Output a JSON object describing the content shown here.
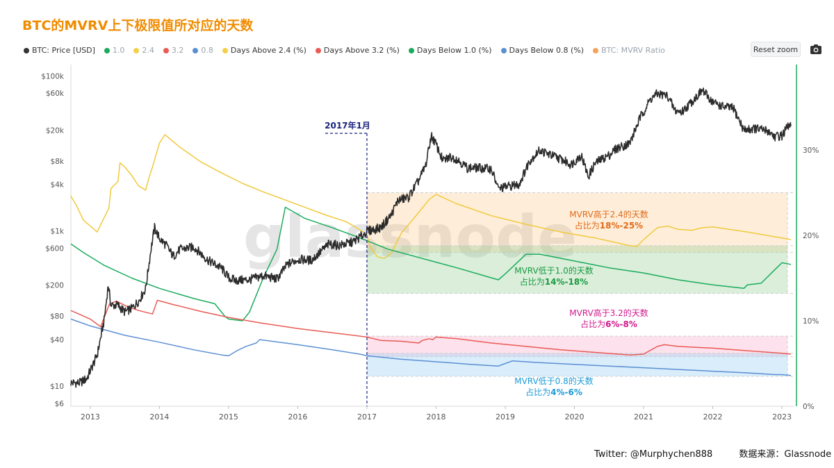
{
  "title": "BTC的MVRV上下极限值所对应的天数",
  "legend": [
    {
      "label": "BTC: Price [USD]",
      "color": "#333333",
      "dim": false
    },
    {
      "label": "1.0",
      "color": "#1aab5c",
      "dim": true
    },
    {
      "label": "2.4",
      "color": "#f5cf4a",
      "dim": true
    },
    {
      "label": "3.2",
      "color": "#e85a55",
      "dim": true
    },
    {
      "label": "0.8",
      "color": "#5b8fd4",
      "dim": true
    },
    {
      "label": "Days Above 2.4 (%)",
      "color": "#f5cf4a",
      "dim": false
    },
    {
      "label": "Days Above 3.2 (%)",
      "color": "#e85a55",
      "dim": false
    },
    {
      "label": "Days Below 1.0 (%)",
      "color": "#1aab5c",
      "dim": false
    },
    {
      "label": "Days Below 0.8 (%)",
      "color": "#5b8fd4",
      "dim": false
    },
    {
      "label": "BTC: MVRV Ratio",
      "color": "#f5a35b",
      "dim": true
    }
  ],
  "toolbar": {
    "reset_zoom": "Reset zoom"
  },
  "credits": {
    "twitter": "Twitter: @Murphychen888",
    "source": "数据来源：Glassnode"
  },
  "chart_data": {
    "type": "line",
    "watermark": "glassnode",
    "x_ticks": [
      "2013",
      "2014",
      "2015",
      "2016",
      "2017",
      "2018",
      "2019",
      "2020",
      "2021",
      "2022",
      "2023"
    ],
    "x_range": [
      2012.72,
      2023.18
    ],
    "y_left": {
      "scale": "log",
      "range": [
        5.5,
        140000
      ],
      "ticks": [
        {
          "v": 100000,
          "label": "$100k"
        },
        {
          "v": 60000,
          "label": "$60k"
        },
        {
          "v": 20000,
          "label": "$20k"
        },
        {
          "v": 8000,
          "label": "$8k"
        },
        {
          "v": 4000,
          "label": "$4k"
        },
        {
          "v": 1000,
          "label": "$1k"
        },
        {
          "v": 600,
          "label": "$600"
        },
        {
          "v": 200,
          "label": "$200"
        },
        {
          "v": 80,
          "label": "$80"
        },
        {
          "v": 40,
          "label": "$40"
        },
        {
          "v": 10,
          "label": "$10"
        },
        {
          "v": 6,
          "label": "$6"
        }
      ]
    },
    "y_right": {
      "scale": "linear",
      "range": [
        0,
        40
      ],
      "ticks": [
        {
          "v": 0,
          "label": "0%"
        },
        {
          "v": 10,
          "label": "10%"
        },
        {
          "v": 20,
          "label": "20%"
        },
        {
          "v": 30,
          "label": "30%"
        }
      ]
    },
    "marker": {
      "x": 2017.0,
      "label": "2017年1月"
    },
    "bands": [
      {
        "name": "band-above-2-4",
        "from": 18,
        "to": 25,
        "fill": "rgba(253,200,130,0.30)",
        "edge": "#cfcfcf"
      },
      {
        "name": "band-below-1-0",
        "from": 13.2,
        "to": 18.8,
        "fill": "rgba(150,205,150,0.35)",
        "edge": "#cfcfcf"
      },
      {
        "name": "band-above-3-2",
        "from": 5.8,
        "to": 8.2,
        "fill": "rgba(250,170,200,0.35)",
        "edge": "#cfcfcf"
      },
      {
        "name": "band-below-0-8",
        "from": 3.5,
        "to": 6.2,
        "fill": "rgba(160,210,245,0.40)",
        "edge": "#cfcfcf"
      }
    ],
    "annotations": [
      {
        "name": "annotation-above-2-4",
        "line1": "MVRV高于2.4的天数",
        "line2_prefix": "占比为",
        "line2_value": "18%-25%",
        "color": "#e06a1a",
        "x": 2017.0,
        "pct": 21.4
      },
      {
        "name": "annotation-below-1-0",
        "line1": "MVRV低于1.0的天数",
        "line2_prefix": "占比为",
        "line2_value": "14%-18%",
        "color": "#1a9a40",
        "x": 2017.0,
        "pct": 15.0
      },
      {
        "name": "annotation-above-3-2",
        "line1": "MVRV高于3.2的天数",
        "line2_prefix": "占比为",
        "line2_value": "6%-8%",
        "color": "#d0198c",
        "x": 2017.0,
        "pct": 9.5
      },
      {
        "name": "annotation-below-0-8",
        "line1": "MVRV低于0.8的天数",
        "line2_prefix": "占比为",
        "line2_value": "4%-6%",
        "color": "#1a9ad8",
        "x": 2017.0,
        "pct": 1.5
      }
    ],
    "series": [
      {
        "name": "Days Above 2.4 (%)",
        "axis": "right",
        "color": "#f0c93c",
        "points": [
          [
            2012.72,
            24.6
          ],
          [
            2012.8,
            23.5
          ],
          [
            2012.9,
            21.8
          ],
          [
            2013.1,
            20.4
          ],
          [
            2013.27,
            23.2
          ],
          [
            2013.3,
            25.5
          ],
          [
            2013.4,
            26.3
          ],
          [
            2013.43,
            28.5
          ],
          [
            2013.5,
            28.0
          ],
          [
            2013.6,
            27.0
          ],
          [
            2013.7,
            25.8
          ],
          [
            2013.8,
            25.3
          ],
          [
            2013.85,
            26.8
          ],
          [
            2013.9,
            28.0
          ],
          [
            2014.0,
            30.8
          ],
          [
            2014.08,
            31.8
          ],
          [
            2014.3,
            30.3
          ],
          [
            2014.6,
            28.6
          ],
          [
            2014.9,
            27.3
          ],
          [
            2015.2,
            26.1
          ],
          [
            2015.5,
            25.1
          ],
          [
            2015.8,
            24.2
          ],
          [
            2016.1,
            23.3
          ],
          [
            2016.4,
            22.4
          ],
          [
            2016.7,
            21.6
          ],
          [
            2016.95,
            20.4
          ],
          [
            2017.0,
            20.0
          ],
          [
            2017.05,
            18.6
          ],
          [
            2017.15,
            17.5
          ],
          [
            2017.25,
            17.3
          ],
          [
            2017.35,
            17.9
          ],
          [
            2017.5,
            20.3
          ],
          [
            2017.7,
            22.2
          ],
          [
            2017.9,
            24.2
          ],
          [
            2018.0,
            24.8
          ],
          [
            2018.3,
            23.7
          ],
          [
            2018.8,
            22.3
          ],
          [
            2019.3,
            21.3
          ],
          [
            2019.8,
            20.4
          ],
          [
            2020.3,
            19.7
          ],
          [
            2020.8,
            18.8
          ],
          [
            2020.9,
            18.7
          ],
          [
            2021.0,
            19.5
          ],
          [
            2021.2,
            20.9
          ],
          [
            2021.35,
            21.1
          ],
          [
            2021.5,
            20.7
          ],
          [
            2021.7,
            20.6
          ],
          [
            2021.85,
            20.9
          ],
          [
            2022.0,
            21.0
          ],
          [
            2022.5,
            20.4
          ],
          [
            2023.0,
            19.7
          ],
          [
            2023.13,
            19.5
          ]
        ]
      },
      {
        "name": "Days Below 1.0 (%)",
        "axis": "right",
        "color": "#1aab5c",
        "points": [
          [
            2012.72,
            19.0
          ],
          [
            2012.9,
            18.0
          ],
          [
            2013.2,
            16.5
          ],
          [
            2013.6,
            15.0
          ],
          [
            2014.0,
            13.8
          ],
          [
            2014.5,
            12.6
          ],
          [
            2014.8,
            12.0
          ],
          [
            2014.95,
            10.5
          ],
          [
            2015.0,
            10.2
          ],
          [
            2015.2,
            10.0
          ],
          [
            2015.3,
            11.0
          ],
          [
            2015.5,
            15.0
          ],
          [
            2015.7,
            18.4
          ],
          [
            2015.82,
            23.3
          ],
          [
            2016.1,
            22.0
          ],
          [
            2016.5,
            20.9
          ],
          [
            2016.9,
            19.7
          ],
          [
            2017.3,
            18.4
          ],
          [
            2017.8,
            17.3
          ],
          [
            2018.3,
            16.2
          ],
          [
            2018.9,
            14.8
          ],
          [
            2019.0,
            15.5
          ],
          [
            2019.3,
            17.8
          ],
          [
            2019.5,
            17.8
          ],
          [
            2020.0,
            17.0
          ],
          [
            2020.5,
            16.2
          ],
          [
            2021.0,
            15.6
          ],
          [
            2021.5,
            14.8
          ],
          [
            2022.0,
            14.2
          ],
          [
            2022.45,
            13.8
          ],
          [
            2022.5,
            14.2
          ],
          [
            2022.7,
            14.4
          ],
          [
            2022.9,
            16.0
          ],
          [
            2023.0,
            16.8
          ],
          [
            2023.13,
            16.6
          ]
        ]
      },
      {
        "name": "Days Above 3.2 (%)",
        "axis": "right",
        "color": "#e85a55",
        "points": [
          [
            2012.72,
            11.2
          ],
          [
            2013.0,
            10.2
          ],
          [
            2013.15,
            9.3
          ],
          [
            2013.28,
            12.0
          ],
          [
            2013.38,
            12.3
          ],
          [
            2013.55,
            11.6
          ],
          [
            2013.7,
            11.2
          ],
          [
            2013.9,
            10.8
          ],
          [
            2013.97,
            12.4
          ],
          [
            2014.2,
            11.9
          ],
          [
            2014.6,
            11.1
          ],
          [
            2015.0,
            10.4
          ],
          [
            2015.5,
            9.7
          ],
          [
            2016.0,
            9.1
          ],
          [
            2016.5,
            8.6
          ],
          [
            2017.0,
            8.1
          ],
          [
            2017.1,
            7.9
          ],
          [
            2017.2,
            7.7
          ],
          [
            2017.5,
            7.6
          ],
          [
            2017.75,
            7.4
          ],
          [
            2017.8,
            7.7
          ],
          [
            2017.9,
            7.9
          ],
          [
            2017.95,
            7.8
          ],
          [
            2018.0,
            8.1
          ],
          [
            2018.3,
            7.9
          ],
          [
            2018.8,
            7.4
          ],
          [
            2019.3,
            7.0
          ],
          [
            2019.8,
            6.6
          ],
          [
            2020.3,
            6.3
          ],
          [
            2020.8,
            6.0
          ],
          [
            2021.0,
            6.1
          ],
          [
            2021.2,
            7.0
          ],
          [
            2021.3,
            7.2
          ],
          [
            2021.5,
            7.0
          ],
          [
            2022.0,
            6.8
          ],
          [
            2022.5,
            6.5
          ],
          [
            2023.0,
            6.2
          ],
          [
            2023.13,
            6.1
          ]
        ]
      },
      {
        "name": "Days Below 0.8 (%)",
        "axis": "right",
        "color": "#5b8fd4",
        "points": [
          [
            2012.72,
            10.2
          ],
          [
            2013.0,
            9.4
          ],
          [
            2013.5,
            8.3
          ],
          [
            2014.0,
            7.5
          ],
          [
            2014.5,
            6.6
          ],
          [
            2014.9,
            6.0
          ],
          [
            2015.0,
            5.9
          ],
          [
            2015.12,
            6.5
          ],
          [
            2015.25,
            7.0
          ],
          [
            2015.4,
            7.4
          ],
          [
            2015.45,
            7.8
          ],
          [
            2016.0,
            7.2
          ],
          [
            2016.5,
            6.6
          ],
          [
            2016.9,
            6.1
          ],
          [
            2017.0,
            5.9
          ],
          [
            2017.5,
            5.5
          ],
          [
            2018.0,
            5.2
          ],
          [
            2018.5,
            4.9
          ],
          [
            2018.9,
            4.7
          ],
          [
            2019.0,
            5.0
          ],
          [
            2019.1,
            5.3
          ],
          [
            2019.5,
            5.1
          ],
          [
            2020.0,
            4.9
          ],
          [
            2020.5,
            4.7
          ],
          [
            2021.0,
            4.5
          ],
          [
            2021.5,
            4.3
          ],
          [
            2022.0,
            4.1
          ],
          [
            2022.5,
            3.9
          ],
          [
            2022.9,
            3.7
          ],
          [
            2023.0,
            3.7
          ],
          [
            2023.13,
            3.6
          ]
        ]
      },
      {
        "name": "BTC: Price [USD]",
        "axis": "left",
        "color": "#2b2b2b",
        "noise": 0.06,
        "points": [
          [
            2012.72,
            11
          ],
          [
            2012.85,
            11
          ],
          [
            2012.95,
            12.5
          ],
          [
            2013.1,
            25
          ],
          [
            2013.2,
            70
          ],
          [
            2013.26,
            200
          ],
          [
            2013.3,
            110
          ],
          [
            2013.4,
            110
          ],
          [
            2013.5,
            90
          ],
          [
            2013.6,
            100
          ],
          [
            2013.7,
            125
          ],
          [
            2013.8,
            180
          ],
          [
            2013.88,
            600
          ],
          [
            2013.93,
            1100
          ],
          [
            2014.0,
            800
          ],
          [
            2014.1,
            650
          ],
          [
            2014.2,
            470
          ],
          [
            2014.3,
            580
          ],
          [
            2014.5,
            620
          ],
          [
            2014.7,
            420
          ],
          [
            2014.9,
            330
          ],
          [
            2015.0,
            250
          ],
          [
            2015.1,
            230
          ],
          [
            2015.3,
            235
          ],
          [
            2015.5,
            265
          ],
          [
            2015.7,
            240
          ],
          [
            2015.85,
            370
          ],
          [
            2016.0,
            430
          ],
          [
            2016.2,
            420
          ],
          [
            2016.45,
            680
          ],
          [
            2016.6,
            650
          ],
          [
            2016.8,
            720
          ],
          [
            2016.95,
            900
          ],
          [
            2017.0,
            990
          ],
          [
            2017.2,
            1100
          ],
          [
            2017.35,
            1600
          ],
          [
            2017.45,
            2500
          ],
          [
            2017.6,
            2700
          ],
          [
            2017.75,
            4500
          ],
          [
            2017.85,
            7000
          ],
          [
            2017.93,
            17000
          ],
          [
            2018.0,
            13000
          ],
          [
            2018.1,
            8000
          ],
          [
            2018.2,
            9000
          ],
          [
            2018.3,
            8500
          ],
          [
            2018.45,
            6500
          ],
          [
            2018.6,
            6500
          ],
          [
            2018.8,
            6300
          ],
          [
            2018.9,
            3500
          ],
          [
            2019.0,
            3700
          ],
          [
            2019.2,
            4000
          ],
          [
            2019.35,
            8000
          ],
          [
            2019.5,
            11000
          ],
          [
            2019.6,
            10000
          ],
          [
            2019.8,
            8500
          ],
          [
            2019.95,
            7200
          ],
          [
            2020.1,
            9500
          ],
          [
            2020.2,
            5000
          ],
          [
            2020.3,
            7500
          ],
          [
            2020.5,
            9500
          ],
          [
            2020.6,
            11500
          ],
          [
            2020.8,
            13500
          ],
          [
            2020.95,
            29000
          ],
          [
            2021.1,
            50000
          ],
          [
            2021.2,
            59000
          ],
          [
            2021.35,
            55000
          ],
          [
            2021.45,
            36000
          ],
          [
            2021.55,
            34000
          ],
          [
            2021.7,
            47000
          ],
          [
            2021.85,
            65000
          ],
          [
            2022.0,
            46000
          ],
          [
            2022.15,
            40000
          ],
          [
            2022.3,
            38000
          ],
          [
            2022.45,
            20000
          ],
          [
            2022.6,
            21000
          ],
          [
            2022.8,
            19500
          ],
          [
            2022.9,
            16500
          ],
          [
            2023.0,
            17000
          ],
          [
            2023.1,
            23000
          ],
          [
            2023.13,
            22500
          ]
        ]
      }
    ]
  }
}
